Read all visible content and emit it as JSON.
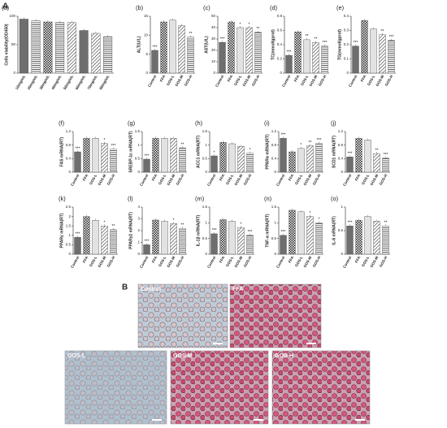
{
  "figure_label": "A",
  "micrographs": {
    "panel": "B",
    "labels": [
      "Control",
      "FFA",
      "GOS-L",
      "GOS-M",
      "GOS-H"
    ]
  },
  "chart_data": [
    {
      "type": "bar",
      "panel": "(a)",
      "ylabel": "Cells viability(OD450)",
      "categories": [
        "10mg/mL",
        "20mg/mL",
        "30mg/mL",
        "40mg/mL",
        "50mg/mL",
        "60mg/mL",
        "70mg/mL",
        "80mg/mL"
      ],
      "values": [
        95,
        92,
        90,
        89,
        89,
        75,
        70,
        64
      ],
      "ylim": [
        0,
        100
      ],
      "yticks": [
        0,
        50,
        100
      ],
      "bar_fills": [
        "solid-dark",
        "horizontal",
        "checker",
        "horizontal",
        "diagonal",
        "solid-dark",
        "diagonal",
        "horizontal"
      ]
    },
    {
      "type": "bar",
      "panel": "(b)",
      "ylabel": "ALT(U/L)",
      "categories": [
        "Control",
        "FFA",
        "GOS-L",
        "GOS-M",
        "GOS-H"
      ],
      "values": [
        6,
        13.5,
        14,
        12.5,
        9.5
      ],
      "annotations": [
        "***",
        null,
        null,
        null,
        "**"
      ],
      "ylim": [
        0,
        15
      ],
      "yticks": [
        0,
        5,
        10,
        15
      ],
      "bar_fills": [
        "solid-dark",
        "checker",
        "solid-light",
        "diagonal",
        "horizontal"
      ]
    },
    {
      "type": "bar",
      "panel": "(c)",
      "ylabel": "AST(U/L)",
      "categories": [
        "Control",
        "FFA",
        "GOS-L",
        "GOS-M",
        "GOS-H"
      ],
      "values": [
        27,
        45,
        40,
        40,
        36
      ],
      "annotations": [
        "***",
        null,
        "*",
        "*",
        "**"
      ],
      "ylim": [
        0,
        50
      ],
      "yticks": [
        0,
        10,
        20,
        30,
        40,
        50
      ],
      "bar_fills": [
        "solid-dark",
        "checker",
        "solid-light",
        "diagonal",
        "horizontal"
      ]
    },
    {
      "type": "bar",
      "panel": "(d)",
      "ylabel": "TC(mmol/gprot)",
      "categories": [
        "Control",
        "FFA",
        "GOS-L",
        "GOS-M",
        "GOS-H"
      ],
      "values": [
        0.25,
        0.58,
        0.47,
        0.43,
        0.38
      ],
      "annotations": [
        "***",
        null,
        "**",
        "**",
        "***"
      ],
      "ylim": [
        0,
        0.8
      ],
      "yticks": [
        0,
        0.2,
        0.4,
        0.6,
        0.8
      ],
      "bar_fills": [
        "solid-dark",
        "checker",
        "solid-light",
        "diagonal",
        "horizontal"
      ]
    },
    {
      "type": "bar",
      "panel": "(e)",
      "ylabel": "TG(mmol/gprot)",
      "categories": [
        "Control",
        "FFA",
        "GOS-L",
        "GOS-M",
        "GOS-H"
      ],
      "values": [
        0.19,
        0.37,
        0.31,
        0.27,
        0.23
      ],
      "annotations": [
        "***",
        null,
        null,
        "**",
        "***"
      ],
      "ylim": [
        0,
        0.4
      ],
      "yticks": [
        0,
        0.1,
        0.2,
        0.3,
        0.4
      ],
      "bar_fills": [
        "solid-dark",
        "checker",
        "solid-light",
        "diagonal",
        "horizontal"
      ]
    },
    {
      "type": "bar",
      "panel": "(f)",
      "ylabel": "FAS mRNA(RT)",
      "categories": [
        "Control",
        "FFA",
        "GOS-L",
        "GOS-M",
        "GOS-H"
      ],
      "values": [
        0.6,
        1.0,
        1.0,
        0.85,
        0.68
      ],
      "annotations": [
        "***",
        null,
        null,
        "*",
        "***"
      ],
      "ylim": [
        0,
        1.2
      ],
      "yticks": [
        0,
        0.4,
        0.8,
        1.2
      ],
      "bar_fills": [
        "solid-dark",
        "checker",
        "solid-light",
        "diagonal",
        "horizontal"
      ]
    },
    {
      "type": "bar",
      "panel": "(g)",
      "ylabel": "SREBP-1c mRNA(RT)",
      "categories": [
        "Control",
        "FFA",
        "GOS-L",
        "GOS-M",
        "GOS-H"
      ],
      "values": [
        0.48,
        1.25,
        1.25,
        1.25,
        0.9
      ],
      "annotations": [
        "***",
        null,
        null,
        null,
        "**"
      ],
      "ylim": [
        0,
        1.5
      ],
      "yticks": [
        0,
        0.5,
        1,
        1.5
      ],
      "bar_fills": [
        "solid-dark",
        "checker",
        "solid-light",
        "diagonal",
        "horizontal"
      ]
    },
    {
      "type": "bar",
      "panel": "(h)",
      "ylabel": "ACC1 mRNA(RT)",
      "categories": [
        "Control",
        "FFA",
        "GOS-L",
        "GOS-M",
        "GOS-H"
      ],
      "values": [
        0.6,
        1.1,
        1.05,
        0.95,
        0.7
      ],
      "annotations": [
        "*",
        null,
        null,
        null,
        "*"
      ],
      "ylim": [
        0,
        1.5
      ],
      "yticks": [
        0,
        0.5,
        1,
        1.5
      ],
      "bar_fills": [
        "solid-dark",
        "checker",
        "solid-light",
        "diagonal",
        "horizontal"
      ]
    },
    {
      "type": "bar",
      "panel": "(i)",
      "ylabel": "PPARα mRNA(RT)",
      "categories": [
        "Control",
        "FFA",
        "GOS-L",
        "GOS-M",
        "GOS-H"
      ],
      "values": [
        1.0,
        0.6,
        0.7,
        0.78,
        0.85
      ],
      "annotations": [
        "***",
        null,
        "*",
        "**",
        "***"
      ],
      "ylim": [
        0,
        1.2
      ],
      "yticks": [
        0,
        0.4,
        0.8,
        1.2
      ],
      "bar_fills": [
        "solid-dark",
        "checker",
        "solid-light",
        "diagonal",
        "horizontal"
      ]
    },
    {
      "type": "bar",
      "panel": "(j)",
      "ylabel": "SCD1 mRNA(RT)",
      "categories": [
        "Control",
        "FFA",
        "GOS-L",
        "GOS-M",
        "GOS-H"
      ],
      "values": [
        0.45,
        1.0,
        0.95,
        0.55,
        0.42
      ],
      "annotations": [
        "***",
        null,
        null,
        "**",
        "***"
      ],
      "ylim": [
        0,
        1.2
      ],
      "yticks": [
        0,
        0.4,
        0.8,
        1.2
      ],
      "bar_fills": [
        "solid-dark",
        "checker",
        "solid-light",
        "diagonal",
        "horizontal"
      ]
    },
    {
      "type": "bar",
      "panel": "(k)",
      "ylabel": "PPARγ mRNA(RT)",
      "categories": [
        "Control",
        "FFA",
        "GOS-L",
        "GOS-M",
        "GOS-H"
      ],
      "values": [
        0.9,
        2.0,
        1.8,
        1.5,
        1.3
      ],
      "annotations": [
        "***",
        null,
        null,
        "*",
        "**"
      ],
      "ylim": [
        0,
        2.5
      ],
      "yticks": [
        0,
        0.5,
        1,
        1.5,
        2,
        2.5
      ],
      "bar_fills": [
        "solid-dark",
        "checker",
        "solid-light",
        "diagonal",
        "horizontal"
      ]
    },
    {
      "type": "bar",
      "panel": "(l)",
      "ylabel": "PPARγ2 mRNA(RT)",
      "categories": [
        "Control",
        "FFA",
        "GOS-L",
        "GOS-M",
        "GOS-H"
      ],
      "values": [
        0.8,
        2.9,
        2.8,
        2.6,
        2.2
      ],
      "annotations": [
        "***",
        null,
        null,
        "*",
        "**"
      ],
      "ylim": [
        0,
        4
      ],
      "yticks": [
        0,
        1,
        2,
        3,
        4
      ],
      "bar_fills": [
        "solid-dark",
        "checker",
        "solid-light",
        "diagonal",
        "horizontal"
      ]
    },
    {
      "type": "bar",
      "panel": "(m)",
      "ylabel": "IL-1β mRNA(RT)",
      "categories": [
        "Control",
        "FFA",
        "GOS-L",
        "GOS-M",
        "GOS-H"
      ],
      "values": [
        0.65,
        1.1,
        1.05,
        0.85,
        0.6
      ],
      "annotations": [
        "***",
        null,
        null,
        "*",
        "***"
      ],
      "ylim": [
        0,
        1.5
      ],
      "yticks": [
        0,
        0.5,
        1,
        1.5
      ],
      "bar_fills": [
        "solid-dark",
        "checker",
        "solid-light",
        "diagonal",
        "horizontal"
      ]
    },
    {
      "type": "bar",
      "panel": "(n)",
      "ylabel": "TNF-α mRNA(RT)",
      "categories": [
        "Control",
        "FFA",
        "GOS-L",
        "GOS-M",
        "GOS-H"
      ],
      "values": [
        0.6,
        1.4,
        1.35,
        1.2,
        1.0
      ],
      "annotations": [
        "***",
        null,
        null,
        "*",
        "*"
      ],
      "ylim": [
        0,
        1.5
      ],
      "yticks": [
        0,
        0.5,
        1,
        1.5
      ],
      "bar_fills": [
        "solid-dark",
        "checker",
        "solid-light",
        "diagonal",
        "horizontal"
      ]
    },
    {
      "type": "bar",
      "panel": "(o)",
      "ylabel": "IL-6 mRNA(RT)",
      "categories": [
        "Control",
        "FFA",
        "GOS-L",
        "GOS-M",
        "GOS-H"
      ],
      "values": [
        0.6,
        0.72,
        0.8,
        0.7,
        0.6
      ],
      "annotations": [
        "***",
        null,
        null,
        null,
        "**"
      ],
      "ylim": [
        0,
        1.0
      ],
      "yticks": [
        0,
        0.5,
        1
      ],
      "bar_fills": [
        "solid-dark",
        "checker",
        "solid-light",
        "diagonal",
        "horizontal"
      ]
    }
  ]
}
